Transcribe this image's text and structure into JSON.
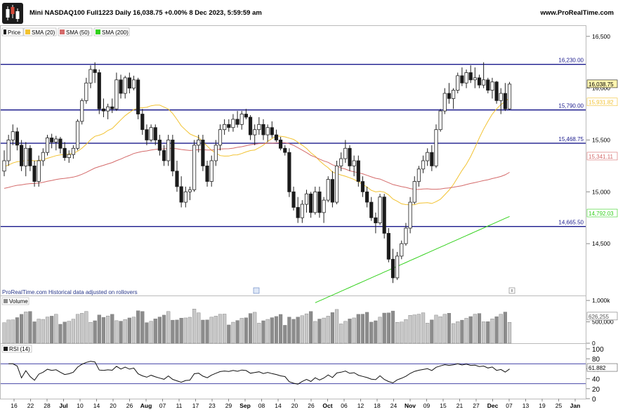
{
  "header": {
    "title": "Mini NASDAQ100 Full1223 Daily 16,038.75 +0.00% 8 Dec 2023, 5:59:59 am",
    "site": "www.ProRealTime.com"
  },
  "legend": {
    "price": "Price",
    "sma20": "SMA (20)",
    "sma50": "SMA (50)",
    "sma200": "SMA (200)"
  },
  "footer_note": "ProRealTime.com Historical data adjusted on rollovers",
  "volume_label": "Volume",
  "rsi_label": "RSI (14)",
  "colors": {
    "up": "#ffffff",
    "down": "#1a1a1a",
    "sma20": "#f2c230",
    "sma50": "#d46a6a",
    "sma200": "#33d11c",
    "hline": "#1a1a8c",
    "volume": "#8c8c8c"
  },
  "chart_data": [
    {
      "type": "candlestick",
      "name": "price",
      "ylim": [
        14000,
        16600
      ],
      "yticks": [
        {
          "value": 16500,
          "label": "16,500"
        },
        {
          "value": 16000,
          "label": "16,000"
        },
        {
          "value": 15500,
          "label": "15,500"
        },
        {
          "value": 15000,
          "label": "15,000"
        },
        {
          "value": 14500,
          "label": "14,500"
        }
      ],
      "xticks": [
        "16",
        "22",
        "28",
        "Jul",
        "10",
        "14",
        "20",
        "26",
        "Aug",
        "07",
        "11",
        "17",
        "23",
        "29",
        "Sep",
        "08",
        "14",
        "20",
        "26",
        "Oct",
        "06",
        "12",
        "18",
        "24",
        "Nov",
        "09",
        "15",
        "21",
        "27",
        "Dec",
        "07",
        "13",
        "19",
        "25",
        "Jan"
      ],
      "horizontal_lines": [
        {
          "value": 16230.0,
          "label": "16,230.00"
        },
        {
          "value": 15790.0,
          "label": "15,790.00"
        },
        {
          "value": 15468.75,
          "label": "15,468.75"
        },
        {
          "value": 14665.5,
          "label": "14,665.50"
        }
      ],
      "last_values": [
        {
          "name": "price",
          "value": 16038.75,
          "label": "16,038.75"
        },
        {
          "name": "sma20",
          "value": 15931.82,
          "label": "15,931.82"
        },
        {
          "name": "sma50",
          "value": 15341.11,
          "label": "15,341.11"
        },
        {
          "name": "sma200",
          "value": 14792.03,
          "label": "14,792.03"
        }
      ],
      "candles": [
        [
          15200,
          15400,
          15150,
          15300
        ],
        [
          15300,
          15550,
          15250,
          15500
        ],
        [
          15500,
          15650,
          15450,
          15580
        ],
        [
          15580,
          15620,
          15400,
          15450
        ],
        [
          15450,
          15500,
          15200,
          15250
        ],
        [
          15250,
          15480,
          15150,
          15420
        ],
        [
          15420,
          15450,
          15200,
          15250
        ],
        [
          15250,
          15300,
          15050,
          15100
        ],
        [
          15100,
          15350,
          15050,
          15300
        ],
        [
          15300,
          15420,
          15250,
          15380
        ],
        [
          15380,
          15550,
          15350,
          15520
        ],
        [
          15520,
          15560,
          15420,
          15480
        ],
        [
          15480,
          15540,
          15400,
          15510
        ],
        [
          15510,
          15530,
          15370,
          15420
        ],
        [
          15420,
          15480,
          15300,
          15330
        ],
        [
          15330,
          15400,
          15280,
          15360
        ],
        [
          15360,
          15450,
          15320,
          15420
        ],
        [
          15420,
          15700,
          15400,
          15680
        ],
        [
          15680,
          15900,
          15650,
          15880
        ],
        [
          15880,
          16100,
          15850,
          16050
        ],
        [
          16050,
          16220,
          16000,
          16180
        ],
        [
          16180,
          16250,
          16050,
          16150
        ],
        [
          16150,
          16180,
          15750,
          15800
        ],
        [
          15800,
          15900,
          15720,
          15780
        ],
        [
          15780,
          15850,
          15700,
          15820
        ],
        [
          15820,
          15900,
          15760,
          15800
        ],
        [
          15800,
          16150,
          15780,
          16080
        ],
        [
          16080,
          16130,
          15900,
          15950
        ],
        [
          15950,
          16120,
          15900,
          16100
        ],
        [
          16100,
          16150,
          15950,
          16000
        ],
        [
          16000,
          16120,
          15980,
          16080
        ],
        [
          16080,
          16100,
          15700,
          15750
        ],
        [
          15750,
          15800,
          15550,
          15600
        ],
        [
          15600,
          15650,
          15450,
          15500
        ],
        [
          15500,
          15650,
          15480,
          15620
        ],
        [
          15620,
          15650,
          15450,
          15500
        ],
        [
          15500,
          15550,
          15350,
          15400
        ],
        [
          15400,
          15450,
          15250,
          15300
        ],
        [
          15300,
          15550,
          15250,
          15500
        ],
        [
          15500,
          15550,
          15150,
          15200
        ],
        [
          15200,
          15300,
          15000,
          15050
        ],
        [
          15050,
          15150,
          14850,
          14900
        ],
        [
          14900,
          15050,
          14850,
          15000
        ],
        [
          15000,
          15050,
          14920,
          15020
        ],
        [
          15020,
          15500,
          15000,
          15450
        ],
        [
          15450,
          15550,
          15380,
          15500
        ],
        [
          15500,
          15550,
          15200,
          15250
        ],
        [
          15250,
          15300,
          15050,
          15100
        ],
        [
          15100,
          15350,
          15050,
          15300
        ],
        [
          15300,
          15500,
          15250,
          15450
        ],
        [
          15450,
          15650,
          15400,
          15600
        ],
        [
          15600,
          15700,
          15550,
          15650
        ],
        [
          15650,
          15700,
          15580,
          15620
        ],
        [
          15620,
          15750,
          15580,
          15700
        ],
        [
          15700,
          15780,
          15620,
          15650
        ],
        [
          15650,
          15780,
          15600,
          15750
        ],
        [
          15750,
          15800,
          15700,
          15720
        ],
        [
          15720,
          15740,
          15500,
          15550
        ],
        [
          15550,
          15650,
          15450,
          15600
        ],
        [
          15600,
          15720,
          15550,
          15650
        ],
        [
          15650,
          15700,
          15500,
          15550
        ],
        [
          15550,
          15650,
          15480,
          15620
        ],
        [
          15620,
          15680,
          15520,
          15550
        ],
        [
          15550,
          15600,
          15480,
          15500
        ],
        [
          15500,
          15530,
          15400,
          15420
        ],
        [
          15420,
          15450,
          15350,
          15380
        ],
        [
          15380,
          15420,
          14950,
          15000
        ],
        [
          15000,
          15050,
          14820,
          14850
        ],
        [
          14850,
          14950,
          14700,
          14750
        ],
        [
          14750,
          14920,
          14700,
          14880
        ],
        [
          14880,
          15020,
          14800,
          14980
        ],
        [
          14980,
          15000,
          14750,
          14800
        ],
        [
          14800,
          15050,
          14780,
          15000
        ],
        [
          15000,
          15050,
          14750,
          14800
        ],
        [
          14800,
          14950,
          14700,
          14920
        ],
        [
          14920,
          15150,
          14900,
          15120
        ],
        [
          15120,
          15200,
          14850,
          14900
        ],
        [
          14900,
          15300,
          14880,
          15250
        ],
        [
          15250,
          15380,
          15200,
          15320
        ],
        [
          15320,
          15500,
          15280,
          15420
        ],
        [
          15420,
          15450,
          15200,
          15250
        ],
        [
          15250,
          15350,
          15150,
          15300
        ],
        [
          15300,
          15350,
          15050,
          15100
        ],
        [
          15100,
          15150,
          14950,
          15000
        ],
        [
          15000,
          15050,
          14850,
          14900
        ],
        [
          14900,
          14950,
          14720,
          14750
        ],
        [
          14750,
          14800,
          14600,
          14700
        ],
        [
          14700,
          14980,
          14680,
          14950
        ],
        [
          14950,
          14980,
          14550,
          14600
        ],
        [
          14600,
          14650,
          14320,
          14350
        ],
        [
          14350,
          14450,
          14120,
          14170
        ],
        [
          14170,
          14420,
          14150,
          14380
        ],
        [
          14380,
          14530,
          14350,
          14500
        ],
        [
          14500,
          14700,
          14480,
          14650
        ],
        [
          14650,
          14950,
          14600,
          14900
        ],
        [
          14900,
          15150,
          14880,
          15100
        ],
        [
          15100,
          15250,
          15050,
          15220
        ],
        [
          15220,
          15350,
          15180,
          15300
        ],
        [
          15300,
          15420,
          15250,
          15380
        ],
        [
          15380,
          15450,
          15200,
          15250
        ],
        [
          15250,
          15650,
          15230,
          15600
        ],
        [
          15600,
          15800,
          15580,
          15780
        ],
        [
          15780,
          16000,
          15750,
          15950
        ],
        [
          15950,
          16050,
          15850,
          15900
        ],
        [
          15900,
          16000,
          15800,
          15980
        ],
        [
          15980,
          16150,
          15950,
          16120
        ],
        [
          16120,
          16200,
          16020,
          16050
        ],
        [
          16050,
          16180,
          16000,
          16150
        ],
        [
          16150,
          16220,
          16050,
          16080
        ],
        [
          16080,
          16200,
          16000,
          16100
        ],
        [
          16100,
          16130,
          16000,
          16030
        ],
        [
          16030,
          16250,
          16000,
          16080
        ],
        [
          16080,
          16100,
          15950,
          15980
        ],
        [
          15980,
          16100,
          15900,
          16060
        ],
        [
          16060,
          16070,
          15850,
          15880
        ],
        [
          15880,
          16000,
          15750,
          15950
        ],
        [
          15950,
          16050,
          15780,
          15800
        ],
        [
          15800,
          16060,
          15790,
          16039
        ]
      ]
    },
    {
      "type": "bar",
      "name": "volume",
      "ylim": [
        0,
        1100000
      ],
      "yticks": [
        {
          "value": 1000000,
          "label": "1,000k"
        },
        {
          "value": 500000,
          "label": "500,000"
        },
        {
          "value": 0,
          "label": "0"
        }
      ],
      "last_value": {
        "value": 626255,
        "label": "626,255"
      }
    },
    {
      "type": "line",
      "name": "rsi",
      "ylim": [
        0,
        100
      ],
      "yticks": [
        {
          "value": 100,
          "label": "100"
        },
        {
          "value": 80,
          "label": "80"
        },
        {
          "value": 60,
          "label": "60"
        },
        {
          "value": 40,
          "label": "40"
        },
        {
          "value": 20,
          "label": "20"
        },
        {
          "value": 0,
          "label": "0"
        }
      ],
      "levels": [
        70,
        30
      ],
      "last_value": {
        "value": 61.882,
        "label": "61.882"
      }
    }
  ]
}
